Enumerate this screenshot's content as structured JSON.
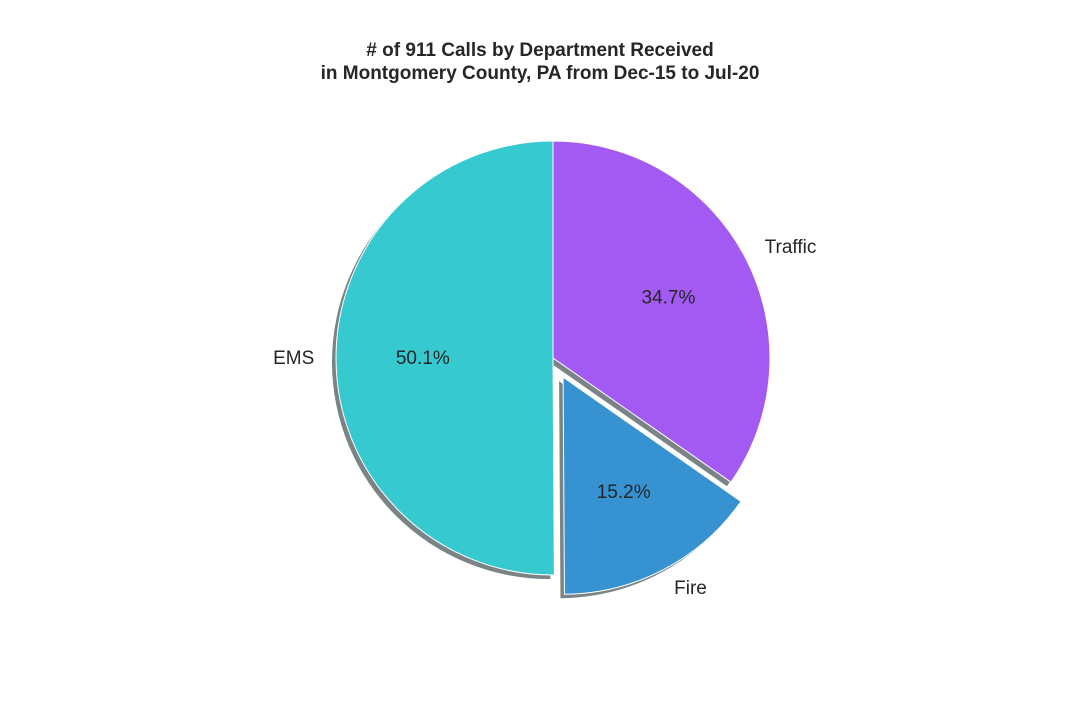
{
  "chart_data": {
    "type": "pie",
    "title_lines": [
      "# of 911 Calls by Department Received",
      "in Montgomery County, PA from Dec-15 to Jul-20"
    ],
    "slices": [
      {
        "label": "Traffic",
        "percent": 34.7,
        "pct_text": "34.7%",
        "color": "#a35af2",
        "exploded": false
      },
      {
        "label": "Fire",
        "percent": 15.2,
        "pct_text": "15.2%",
        "color": "#3692d1",
        "exploded": true
      },
      {
        "label": "EMS",
        "percent": 50.1,
        "pct_text": "50.1%",
        "color": "#36c9d0",
        "exploded": false
      }
    ],
    "start_angle_deg": 90,
    "direction": "clockwise",
    "shadow": true
  }
}
